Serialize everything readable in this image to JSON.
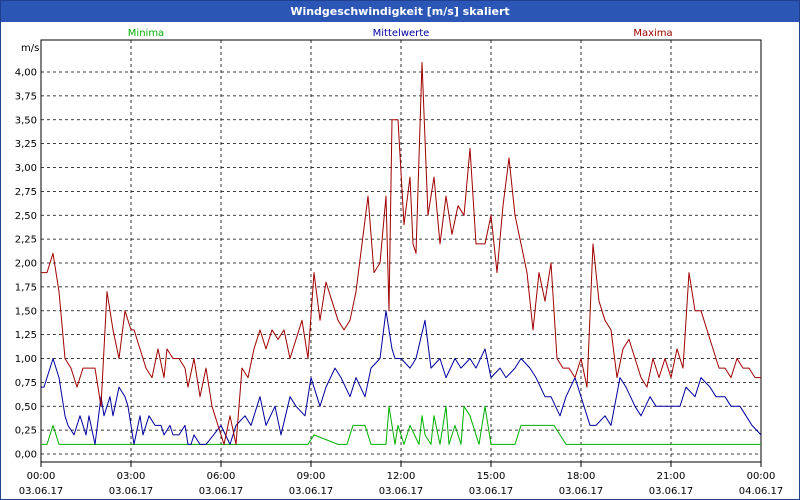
{
  "window": {
    "title": "Windgeschwindigkeit [m/s] skaliert"
  },
  "chart_data": {
    "type": "line",
    "title": "Windgeschwindigkeit [m/s] skaliert",
    "ylabel": "m/s",
    "ylim": [
      0,
      4.25
    ],
    "xlim_hours": [
      0,
      24
    ],
    "grid": true,
    "legend_placement": "top",
    "y_ticks": [
      "0,00",
      "0,25",
      "0,50",
      "0,75",
      "1,00",
      "1,25",
      "1,50",
      "1,75",
      "2,00",
      "2,25",
      "2,50",
      "2,75",
      "3,00",
      "3,25",
      "3,50",
      "3,75",
      "4,00"
    ],
    "x_ticks": [
      {
        "time": "00:00",
        "date": "03.06.17"
      },
      {
        "time": "03:00",
        "date": "03.06.17"
      },
      {
        "time": "06:00",
        "date": "03.06.17"
      },
      {
        "time": "09:00",
        "date": "03.06.17"
      },
      {
        "time": "12:00",
        "date": "03.06.17"
      },
      {
        "time": "15:00",
        "date": "03.06.17"
      },
      {
        "time": "18:00",
        "date": "03.06.17"
      },
      {
        "time": "21:00",
        "date": "03.06.17"
      },
      {
        "time": "00:00",
        "date": "04.06.17"
      }
    ],
    "series": [
      {
        "name": "Minima",
        "color": "#00b000",
        "x": [
          0,
          0.2,
          0.4,
          0.6,
          2.9,
          3.2,
          8.9,
          9.1,
          9.9,
          10.2,
          10.4,
          10.8,
          11.0,
          11.3,
          11.5,
          11.6,
          11.8,
          11.9,
          12.1,
          12.3,
          12.6,
          12.7,
          12.8,
          13.0,
          13.1,
          13.3,
          13.5,
          13.6,
          13.8,
          14.0,
          14.1,
          14.3,
          14.6,
          14.8,
          15.0,
          15.2,
          15.5,
          15.8,
          16.0,
          16.2,
          16.4,
          17.1,
          17.5,
          24
        ],
        "values": [
          0.1,
          0.1,
          0.3,
          0.1,
          0.1,
          0.1,
          0.1,
          0.2,
          0.1,
          0.1,
          0.3,
          0.3,
          0.1,
          0.1,
          0.1,
          0.5,
          0.1,
          0.3,
          0.1,
          0.3,
          0.1,
          0.4,
          0.2,
          0.1,
          0.4,
          0.1,
          0.5,
          0.1,
          0.3,
          0.1,
          0.5,
          0.4,
          0.1,
          0.5,
          0.1,
          0.1,
          0.1,
          0.1,
          0.3,
          0.3,
          0.3,
          0.3,
          0.1,
          0.1
        ]
      },
      {
        "name": "Mittelwerte",
        "color": "#0000a0",
        "x": [
          0,
          0.1,
          0.3,
          0.4,
          0.6,
          0.8,
          0.9,
          1.1,
          1.3,
          1.5,
          1.6,
          1.8,
          2.0,
          2.1,
          2.3,
          2.4,
          2.6,
          2.8,
          2.9,
          3.0,
          3.1,
          3.3,
          3.4,
          3.6,
          3.8,
          4.0,
          4.1,
          4.3,
          4.4,
          4.6,
          4.8,
          4.9,
          5.0,
          5.1,
          5.3,
          5.5,
          6.0,
          6.3,
          6.5,
          6.8,
          7.0,
          7.3,
          7.5,
          7.8,
          8.0,
          8.3,
          8.5,
          8.8,
          9.0,
          9.3,
          9.5,
          9.8,
          10.0,
          10.3,
          10.5,
          10.8,
          11.0,
          11.3,
          11.5,
          11.7,
          11.8,
          12.0,
          12.3,
          12.5,
          12.8,
          13.0,
          13.3,
          13.5,
          13.8,
          14.0,
          14.3,
          14.5,
          14.8,
          15.0,
          15.3,
          15.5,
          15.8,
          16.0,
          16.3,
          16.5,
          16.8,
          17.0,
          17.3,
          17.5,
          17.8,
          18.0,
          18.3,
          18.5,
          18.8,
          19.0,
          19.3,
          19.5,
          19.8,
          20.0,
          20.3,
          20.5,
          20.8,
          21.0,
          21.3,
          21.5,
          21.8,
          22.0,
          22.3,
          22.5,
          22.8,
          23.0,
          23.3,
          23.5,
          23.7,
          24
        ],
        "values": [
          0.7,
          0.7,
          0.9,
          1.0,
          0.8,
          0.4,
          0.3,
          0.2,
          0.4,
          0.2,
          0.4,
          0.1,
          0.6,
          0.4,
          0.6,
          0.4,
          0.7,
          0.6,
          0.5,
          0.3,
          0.1,
          0.4,
          0.2,
          0.4,
          0.3,
          0.3,
          0.2,
          0.3,
          0.2,
          0.2,
          0.3,
          0.1,
          0.1,
          0.2,
          0.1,
          0.1,
          0.3,
          0.1,
          0.3,
          0.4,
          0.3,
          0.6,
          0.3,
          0.5,
          0.2,
          0.6,
          0.5,
          0.4,
          0.8,
          0.5,
          0.7,
          0.9,
          0.8,
          0.6,
          0.8,
          0.6,
          0.9,
          1.0,
          1.5,
          1.1,
          1.0,
          1.0,
          0.9,
          1.0,
          1.4,
          0.9,
          1.0,
          0.8,
          1.0,
          0.9,
          1.0,
          0.9,
          1.1,
          0.8,
          0.9,
          0.8,
          0.9,
          1.0,
          0.9,
          0.8,
          0.6,
          0.6,
          0.4,
          0.6,
          0.8,
          0.6,
          0.3,
          0.3,
          0.4,
          0.3,
          0.8,
          0.7,
          0.5,
          0.4,
          0.6,
          0.5,
          0.5,
          0.5,
          0.5,
          0.7,
          0.6,
          0.8,
          0.7,
          0.6,
          0.6,
          0.5,
          0.5,
          0.4,
          0.3,
          0.2
        ]
      },
      {
        "name": "Maxima",
        "color": "#a00000",
        "x": [
          0,
          0.2,
          0.4,
          0.6,
          0.8,
          1.0,
          1.2,
          1.4,
          1.6,
          1.8,
          2.0,
          2.2,
          2.4,
          2.6,
          2.8,
          3.0,
          3.1,
          3.2,
          3.3,
          3.5,
          3.7,
          3.9,
          4.1,
          4.2,
          4.4,
          4.6,
          4.8,
          4.9,
          5.1,
          5.3,
          5.5,
          5.7,
          5.9,
          6.1,
          6.3,
          6.5,
          6.7,
          6.9,
          7.1,
          7.3,
          7.5,
          7.7,
          7.9,
          8.1,
          8.3,
          8.5,
          8.7,
          8.9,
          9.1,
          9.3,
          9.5,
          9.7,
          9.9,
          10.1,
          10.3,
          10.5,
          10.7,
          10.9,
          11.1,
          11.3,
          11.5,
          11.6,
          11.7,
          11.9,
          12.1,
          12.3,
          12.4,
          12.5,
          12.7,
          12.9,
          13.1,
          13.3,
          13.5,
          13.7,
          13.9,
          14.1,
          14.3,
          14.5,
          14.6,
          14.8,
          15.0,
          15.2,
          15.4,
          15.6,
          15.8,
          16.0,
          16.2,
          16.4,
          16.6,
          16.8,
          17.0,
          17.2,
          17.4,
          17.6,
          17.8,
          18.0,
          18.2,
          18.4,
          18.6,
          18.8,
          19.0,
          19.2,
          19.4,
          19.6,
          19.8,
          20.0,
          20.2,
          20.4,
          20.6,
          20.8,
          21.0,
          21.2,
          21.4,
          21.6,
          21.8,
          22.0,
          22.2,
          22.4,
          22.6,
          22.8,
          23.0,
          23.2,
          23.4,
          23.6,
          23.8,
          24
        ],
        "values": [
          1.9,
          1.9,
          2.1,
          1.7,
          1.0,
          0.9,
          0.7,
          0.9,
          0.9,
          0.9,
          0.5,
          1.7,
          1.3,
          1.0,
          1.5,
          1.3,
          1.3,
          1.2,
          1.1,
          0.9,
          0.8,
          1.1,
          0.8,
          1.1,
          1.0,
          1.0,
          0.9,
          0.7,
          1.0,
          0.6,
          0.9,
          0.5,
          0.3,
          0.1,
          0.4,
          0.1,
          0.9,
          0.8,
          1.1,
          1.3,
          1.1,
          1.3,
          1.2,
          1.3,
          1.0,
          1.2,
          1.4,
          1.0,
          1.9,
          1.4,
          1.8,
          1.6,
          1.4,
          1.3,
          1.4,
          1.7,
          2.2,
          2.7,
          1.9,
          2.0,
          2.7,
          1.5,
          3.5,
          3.5,
          2.4,
          2.9,
          2.2,
          2.1,
          4.1,
          2.5,
          2.9,
          2.2,
          2.7,
          2.3,
          2.6,
          2.5,
          3.2,
          2.2,
          2.2,
          2.2,
          2.5,
          1.9,
          2.6,
          3.1,
          2.5,
          2.2,
          1.9,
          1.3,
          1.9,
          1.6,
          2.0,
          1.0,
          0.9,
          0.9,
          0.8,
          1.0,
          0.7,
          2.2,
          1.6,
          1.4,
          1.3,
          0.8,
          1.1,
          1.2,
          1.0,
          0.8,
          0.7,
          1.0,
          0.8,
          1.0,
          0.8,
          1.1,
          0.9,
          1.9,
          1.5,
          1.5,
          1.3,
          1.1,
          0.9,
          0.9,
          0.8,
          1.0,
          0.9,
          0.9,
          0.8,
          0.8
        ]
      }
    ]
  }
}
